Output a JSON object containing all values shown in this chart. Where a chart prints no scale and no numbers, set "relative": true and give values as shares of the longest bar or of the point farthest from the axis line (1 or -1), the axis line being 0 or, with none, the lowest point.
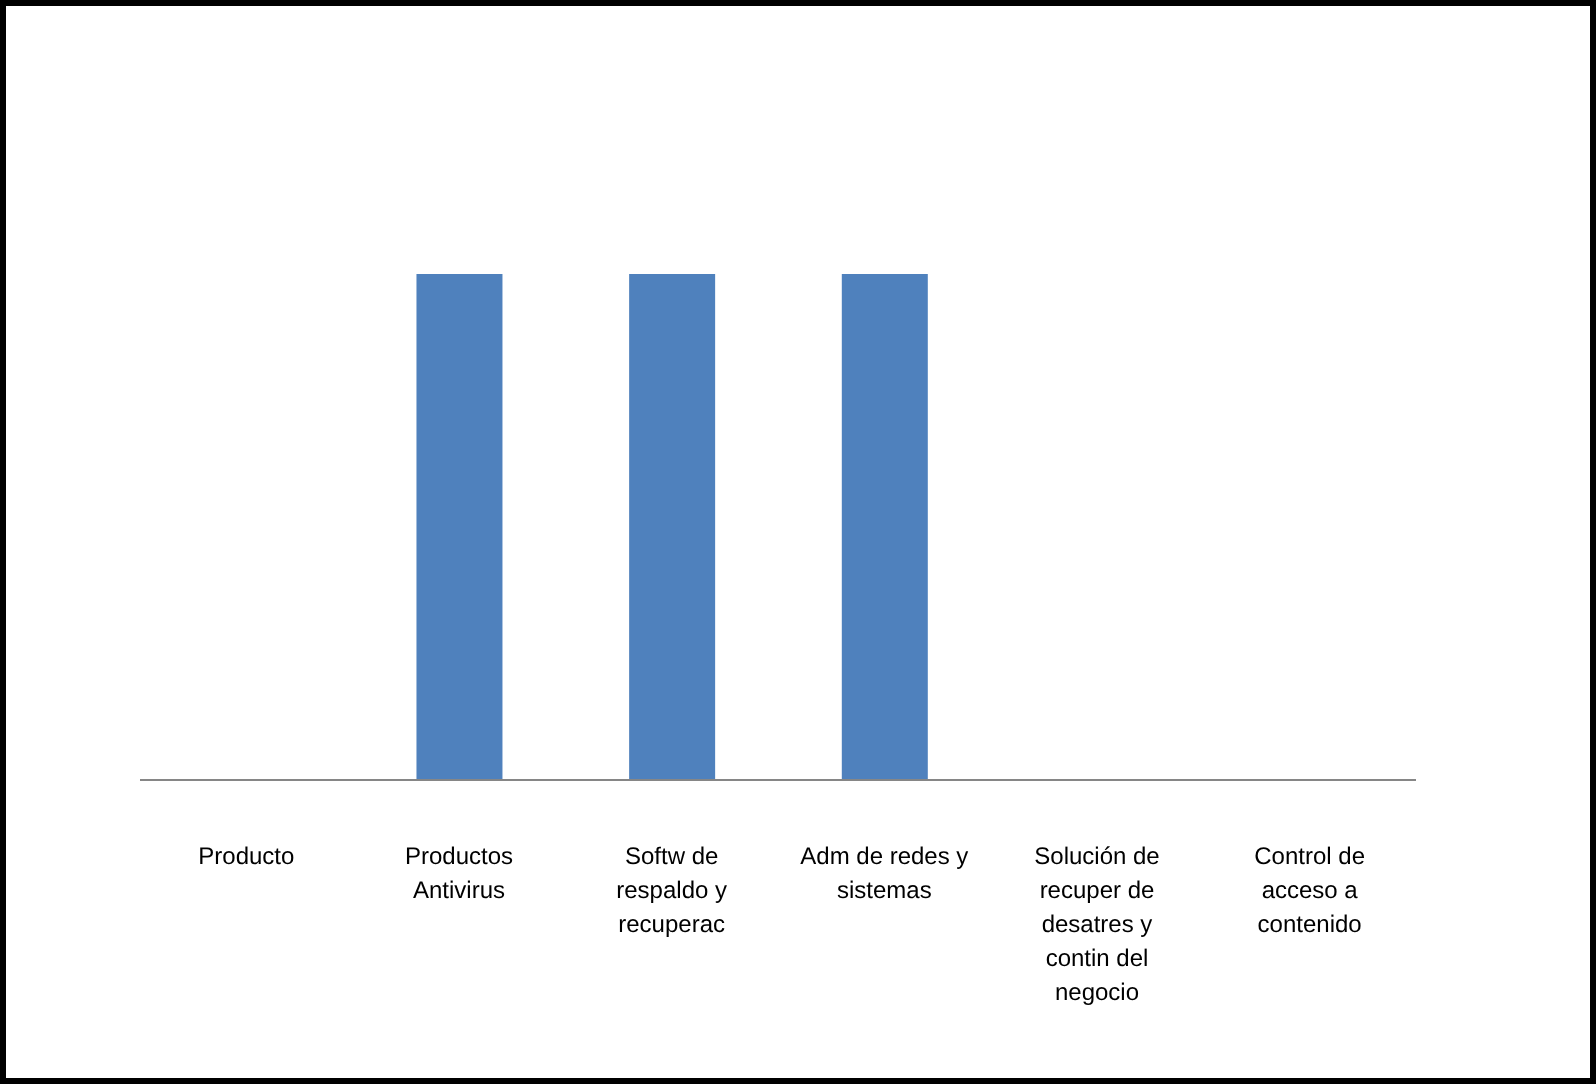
{
  "chart_data": {
    "type": "bar",
    "relative": true,
    "categories": [
      "Producto",
      "Productos Antivirus",
      "Softw de respaldo y recuperac",
      "Adm de redes y sistemas",
      "Solución de recuper de desatres y contin del negocio",
      "Control de acceso a contenido"
    ],
    "values": [
      0,
      1,
      1,
      1,
      0,
      0
    ],
    "color": "#4f81bd"
  }
}
